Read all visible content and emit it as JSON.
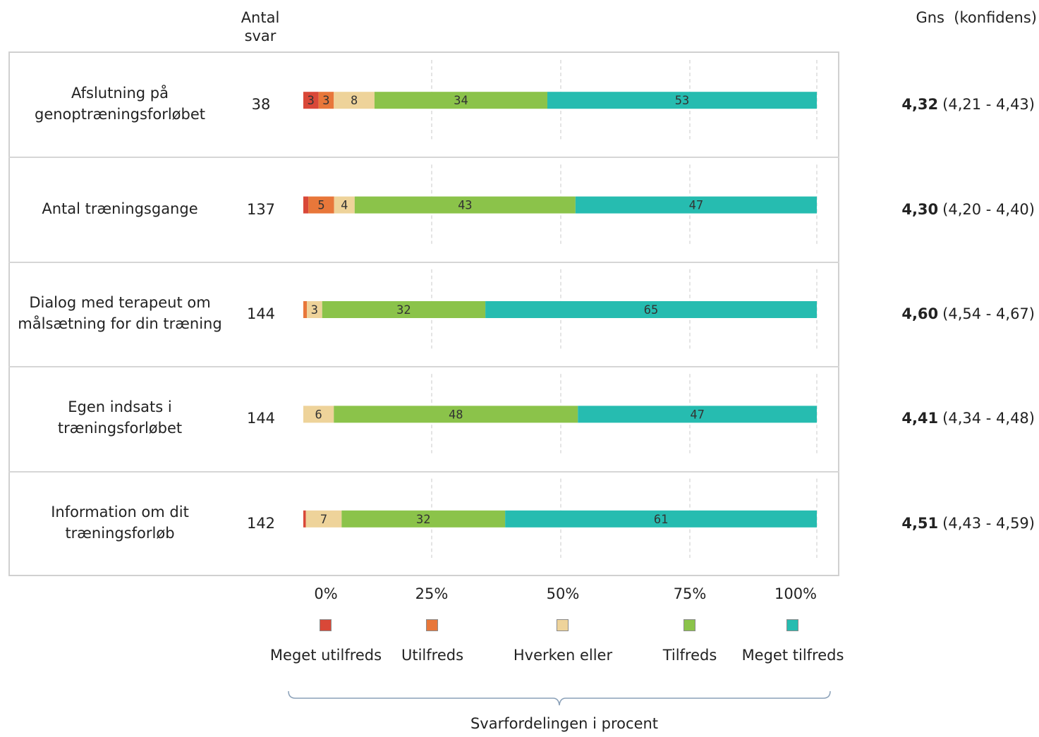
{
  "header": {
    "count_title": "Antal svar",
    "mean_title": "Gns  (konfidens)"
  },
  "chart_data": {
    "type": "bar",
    "stacked": true,
    "orientation": "horizontal",
    "x_axis": {
      "ticks": [
        "0%",
        "25%",
        "50%",
        "75%",
        "100%"
      ],
      "xlim": [
        0,
        100
      ]
    },
    "caption": "Svarfordelingen i procent",
    "legend_position": "bottom",
    "series": [
      {
        "name": "Meget utilfreds",
        "color": "#d94838"
      },
      {
        "name": "Utilfreds",
        "color": "#e8773a"
      },
      {
        "name": "Hverken eller",
        "color": "#eed39a"
      },
      {
        "name": "Tilfreds",
        "color": "#8bc34a"
      },
      {
        "name": "Meget tilfreds",
        "color": "#26bcb0"
      }
    ],
    "rows": [
      {
        "category": "Afslutning på genoptræningsforløbet",
        "count": "38",
        "values": [
          3,
          3,
          8,
          34,
          53
        ],
        "labels": [
          "3",
          "3",
          "8",
          "34",
          "53"
        ],
        "mean": "4,32",
        "ci": "(4,21 - 4,43)"
      },
      {
        "category": "Antal træningsgange",
        "count": "137",
        "values": [
          1,
          5,
          4,
          43,
          47
        ],
        "labels": [
          "",
          "5",
          "4",
          "43",
          "47"
        ],
        "mean": "4,30",
        "ci": "(4,20 - 4,40)"
      },
      {
        "category": "Dialog med terapeut om målsætning for din træning",
        "count": "144",
        "values": [
          0,
          0.7,
          3,
          32,
          65
        ],
        "labels": [
          "",
          "",
          "3",
          "32",
          "65"
        ],
        "mean": "4,60",
        "ci": "(4,54 - 4,67)"
      },
      {
        "category": "Egen indsats i træningsforløbet",
        "count": "144",
        "values": [
          0,
          0,
          6,
          48,
          47
        ],
        "labels": [
          "",
          "",
          "6",
          "48",
          "47"
        ],
        "mean": "4,41",
        "ci": "(4,34 - 4,48)"
      },
      {
        "category": "Information om dit træningsforløb",
        "count": "142",
        "values": [
          0.5,
          0,
          7,
          32,
          61
        ],
        "labels": [
          "",
          "",
          "7",
          "32",
          "61"
        ],
        "mean": "4,51",
        "ci": "(4,43 - 4,59)"
      }
    ]
  }
}
